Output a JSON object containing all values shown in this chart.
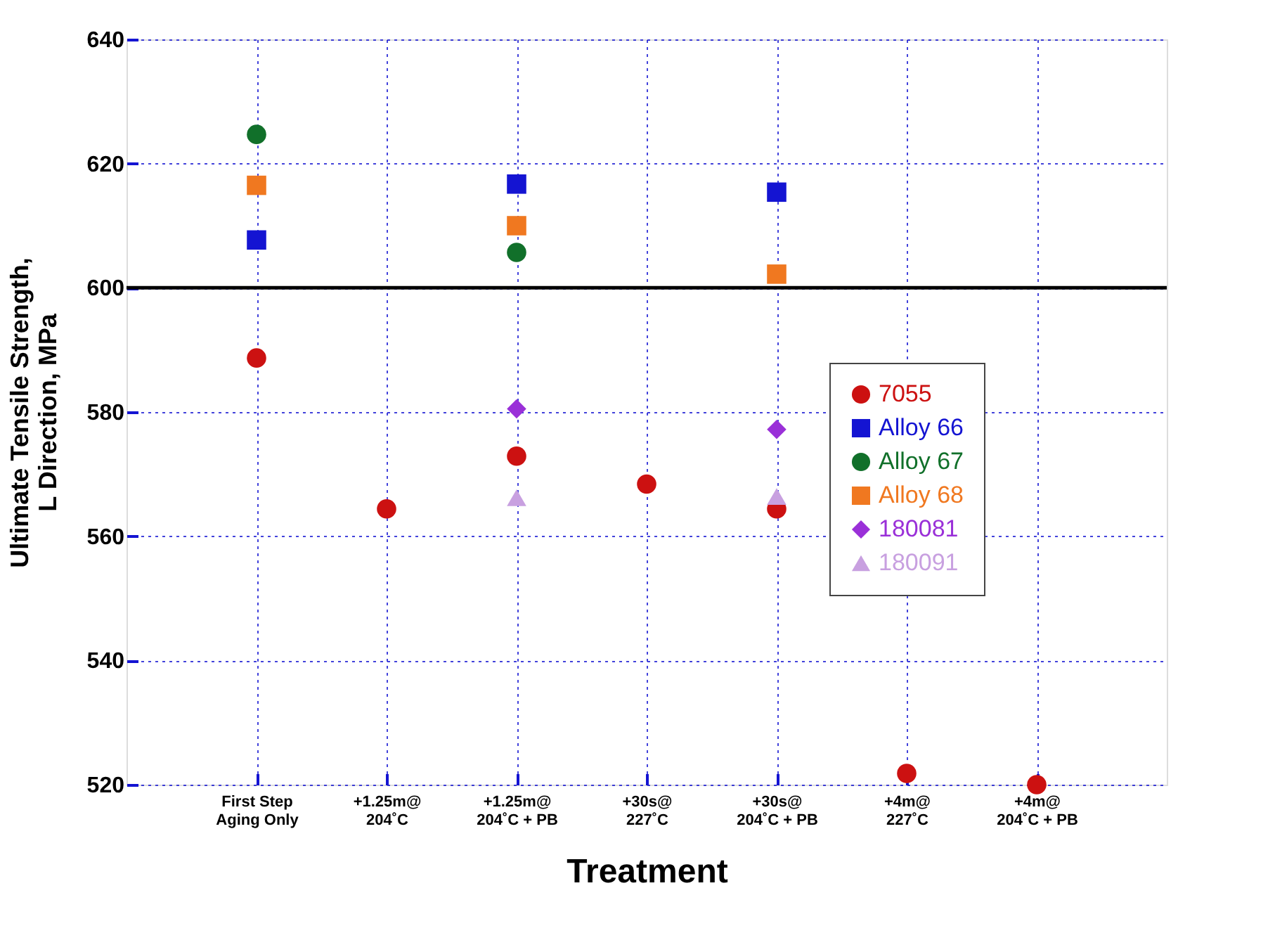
{
  "chart_data": {
    "type": "scatter",
    "xlabel": "Treatment",
    "ylabel": "Ultimate Tensile Strength,\nL Direction, MPa",
    "categories": [
      "First Step\nAging Only",
      "+1.25m@\n204˚C",
      "+1.25m@\n204˚C + PB",
      "+30s@\n227˚C",
      "+30s@\n204˚C + PB",
      "+4m@\n227˚C",
      "+4m@\n204˚C + PB"
    ],
    "series": [
      {
        "name": "7055",
        "color": "#cc1111",
        "marker": "circle",
        "values": [
          588.7,
          564.4,
          572.9,
          568.4,
          564.4,
          521.8,
          520
        ]
      },
      {
        "name": "Alloy 66",
        "color": "#1414d2",
        "marker": "square",
        "values": [
          607.7,
          null,
          616.7,
          null,
          615.4,
          null,
          null
        ]
      },
      {
        "name": "Alloy 67",
        "color": "#11702a",
        "marker": "circle",
        "values": [
          624.7,
          null,
          605.7,
          null,
          null,
          null,
          null
        ]
      },
      {
        "name": "Alloy 68",
        "color": "#f07820",
        "marker": "square",
        "values": [
          616.5,
          null,
          610,
          null,
          602.2,
          null,
          null
        ]
      },
      {
        "name": "180081",
        "color": "#9a30d8",
        "marker": "diamond",
        "values": [
          null,
          null,
          580.5,
          null,
          577.2,
          null,
          null
        ]
      },
      {
        "name": "180091",
        "color": "#c8a0e0",
        "marker": "triangle",
        "values": [
          null,
          null,
          566.2,
          null,
          566.4,
          null,
          null
        ]
      }
    ],
    "ylim": [
      520,
      640
    ],
    "yticks": [
      520,
      540,
      560,
      580,
      600,
      620,
      640
    ],
    "ref_lines": [
      {
        "axis": "y",
        "value": 600,
        "color": "#000000",
        "line_style": "solid"
      }
    ],
    "grid": true,
    "legend": "right"
  }
}
